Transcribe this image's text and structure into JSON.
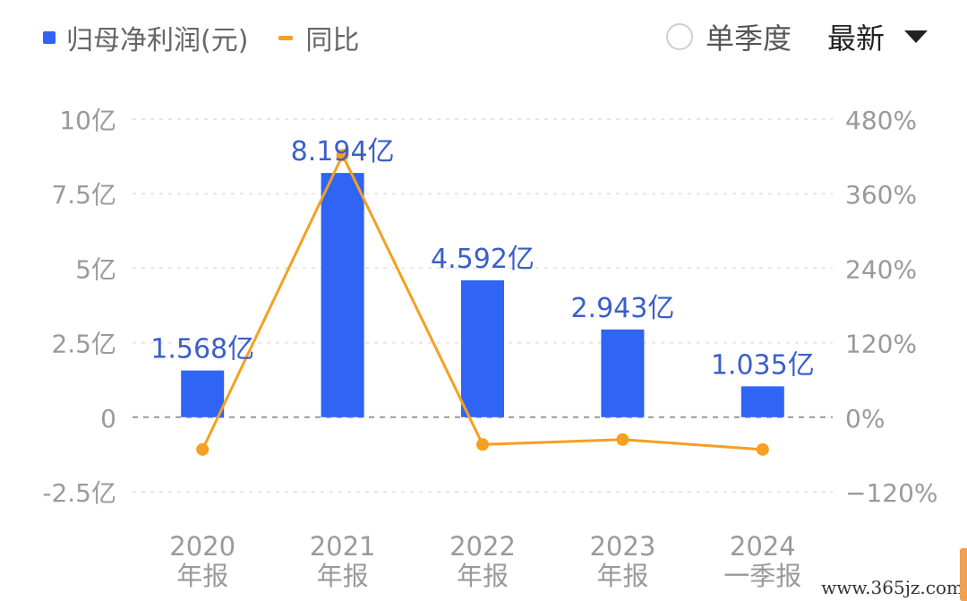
{
  "legend": {
    "bar_label": "归母净利润(元)",
    "line_label": "同比"
  },
  "controls": {
    "single_quarter_label": "单季度",
    "period_select_value": "最新"
  },
  "colors": {
    "bar": "#2f64f5",
    "line": "#f5a020",
    "bar_label": "#3a5fc8",
    "axis_text": "#9a9a9a",
    "grid": "#e6e6e6",
    "zero_line": "#999999"
  },
  "watermark": "www.365jz.com",
  "chart_data": {
    "type": "bar",
    "categories": [
      [
        "2020",
        "年报"
      ],
      [
        "2021",
        "年报"
      ],
      [
        "2022",
        "年报"
      ],
      [
        "2023",
        "年报"
      ],
      [
        "2024",
        "一季报"
      ]
    ],
    "series": [
      {
        "name": "归母净利润(元)",
        "type": "bar",
        "axis": "left",
        "values": [
          1.568,
          8.194,
          4.592,
          2.943,
          1.035
        ],
        "labels": [
          "1.568亿",
          "8.194亿",
          "4.592亿",
          "2.943亿",
          "1.035亿"
        ]
      },
      {
        "name": "同比",
        "type": "line",
        "axis": "right",
        "values": [
          -52,
          422,
          -44,
          -36,
          -52
        ]
      }
    ],
    "y_left": {
      "min": -2.5,
      "max": 10,
      "ticks": [
        10,
        7.5,
        5,
        2.5,
        0,
        -2.5
      ],
      "tick_labels": [
        "10亿",
        "7.5亿",
        "5亿",
        "2.5亿",
        "0",
        "-2.5亿"
      ]
    },
    "y_right": {
      "min": -120,
      "max": 480,
      "ticks": [
        480,
        360,
        240,
        120,
        0,
        -120
      ],
      "tick_labels": [
        "480%",
        "360%",
        "240%",
        "120%",
        "0%",
        "−120%"
      ]
    },
    "grid": true,
    "legend_position": "top-left"
  }
}
